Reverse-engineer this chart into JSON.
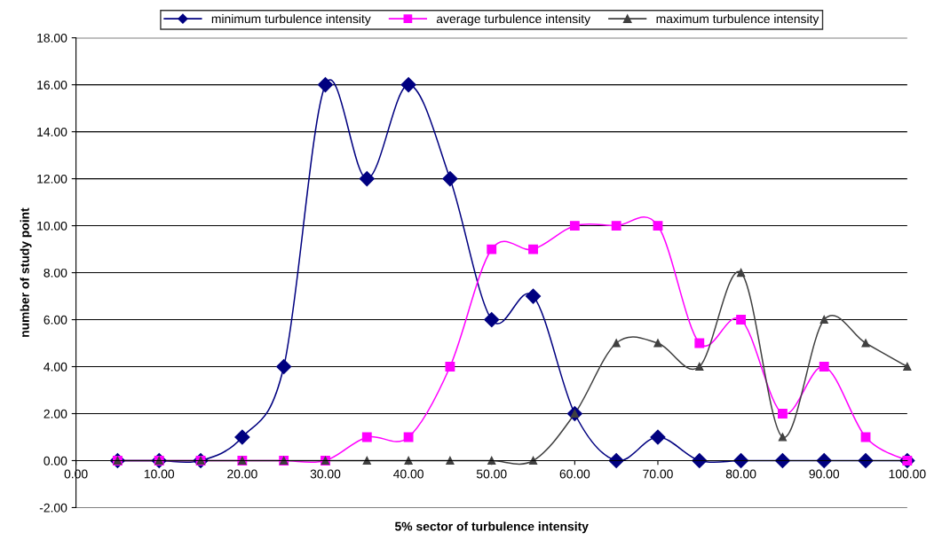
{
  "chart_data": {
    "type": "line",
    "xlabel": "5% sector of turbulence intensity",
    "ylabel": "number of study point",
    "x": [
      5,
      10,
      15,
      20,
      25,
      30,
      35,
      40,
      45,
      50,
      55,
      60,
      65,
      70,
      75,
      80,
      85,
      90,
      95,
      100
    ],
    "series": [
      {
        "name": "minimum turbulence intensity",
        "color": "#000080",
        "marker": "diamond",
        "values": [
          0,
          0,
          0,
          1,
          4,
          16,
          12,
          16,
          12,
          6,
          7,
          2,
          0,
          1,
          0,
          0,
          0,
          0,
          0,
          0
        ]
      },
      {
        "name": "average turbulence intensity",
        "color": "#ff00ff",
        "marker": "square",
        "values": [
          0,
          0,
          0,
          0,
          0,
          0,
          1,
          1,
          4,
          9,
          9,
          10,
          10,
          10,
          5,
          6,
          2,
          4,
          1,
          0
        ]
      },
      {
        "name": "maximum turbulence intensity",
        "color": "#404040",
        "marker": "triangle",
        "values": [
          0,
          0,
          0,
          0,
          0,
          0,
          0,
          0,
          0,
          0,
          0,
          2,
          5,
          5,
          4,
          8,
          1,
          6,
          5,
          4
        ]
      }
    ],
    "xlim": [
      0,
      100
    ],
    "xticks": [
      {
        "value": 0,
        "label": "0.00"
      },
      {
        "value": 10,
        "label": "10.00"
      },
      {
        "value": 20,
        "label": "20.00"
      },
      {
        "value": 30,
        "label": "30.00"
      },
      {
        "value": 40,
        "label": "40.00"
      },
      {
        "value": 50,
        "label": "50.00"
      },
      {
        "value": 60,
        "label": "60.00"
      },
      {
        "value": 70,
        "label": "70.00"
      },
      {
        "value": 80,
        "label": "80.00"
      },
      {
        "value": 90,
        "label": "90.00"
      },
      {
        "value": 100,
        "label": "100.00"
      }
    ],
    "ylim": [
      -2,
      18
    ],
    "yticks": [
      {
        "value": -2,
        "label": "-2.00"
      },
      {
        "value": 0,
        "label": "0.00"
      },
      {
        "value": 2,
        "label": "2.00"
      },
      {
        "value": 4,
        "label": "4.00"
      },
      {
        "value": 6,
        "label": "6.00"
      },
      {
        "value": 8,
        "label": "8.00"
      },
      {
        "value": 10,
        "label": "10.00"
      },
      {
        "value": 12,
        "label": "12.00"
      },
      {
        "value": 14,
        "label": "14.00"
      },
      {
        "value": 16,
        "label": "16.00"
      },
      {
        "value": 18,
        "label": "18.00"
      }
    ],
    "grid": "y",
    "legend": "top",
    "line_style": "solid"
  }
}
